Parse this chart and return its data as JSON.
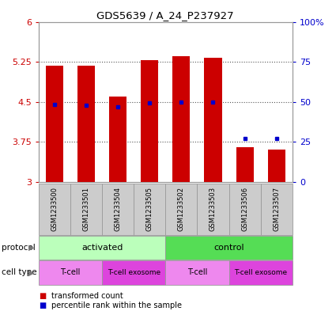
{
  "title": "GDS5639 / A_24_P237927",
  "samples": [
    "GSM1233500",
    "GSM1233501",
    "GSM1233504",
    "GSM1233505",
    "GSM1233502",
    "GSM1233503",
    "GSM1233506",
    "GSM1233507"
  ],
  "bar_values": [
    5.18,
    5.18,
    4.6,
    5.28,
    5.35,
    5.32,
    3.65,
    3.6
  ],
  "bar_base": 3.0,
  "percentile_values": [
    4.45,
    4.43,
    4.4,
    4.48,
    4.5,
    4.5,
    3.82,
    3.82
  ],
  "ylim": [
    3.0,
    6.0
  ],
  "yticks": [
    3.0,
    3.75,
    4.5,
    5.25,
    6.0
  ],
  "ytick_labels": [
    "3",
    "3.75",
    "4.5",
    "5.25",
    "6"
  ],
  "y2ticks": [
    0,
    25,
    50,
    75,
    100
  ],
  "y2tick_labels": [
    "0",
    "25",
    "50",
    "75",
    "100%"
  ],
  "bar_color": "#cc0000",
  "percentile_color": "#0000cc",
  "protocol_groups": [
    {
      "label": "activated",
      "start": 0,
      "end": 4,
      "color": "#bbffbb"
    },
    {
      "label": "control",
      "start": 4,
      "end": 8,
      "color": "#55dd55"
    }
  ],
  "cell_type_groups": [
    {
      "label": "T-cell",
      "start": 0,
      "end": 2,
      "color": "#ee88ee"
    },
    {
      "label": "T-cell exosome",
      "start": 2,
      "end": 4,
      "color": "#dd44dd"
    },
    {
      "label": "T-cell",
      "start": 4,
      "end": 6,
      "color": "#ee88ee"
    },
    {
      "label": "T-cell exosome",
      "start": 6,
      "end": 8,
      "color": "#dd44dd"
    }
  ],
  "legend_items": [
    {
      "label": "transformed count",
      "color": "#cc0000"
    },
    {
      "label": "percentile rank within the sample",
      "color": "#0000cc"
    }
  ],
  "bg_color": "#ffffff",
  "sample_bg_color": "#cccccc",
  "border_color": "#999999"
}
